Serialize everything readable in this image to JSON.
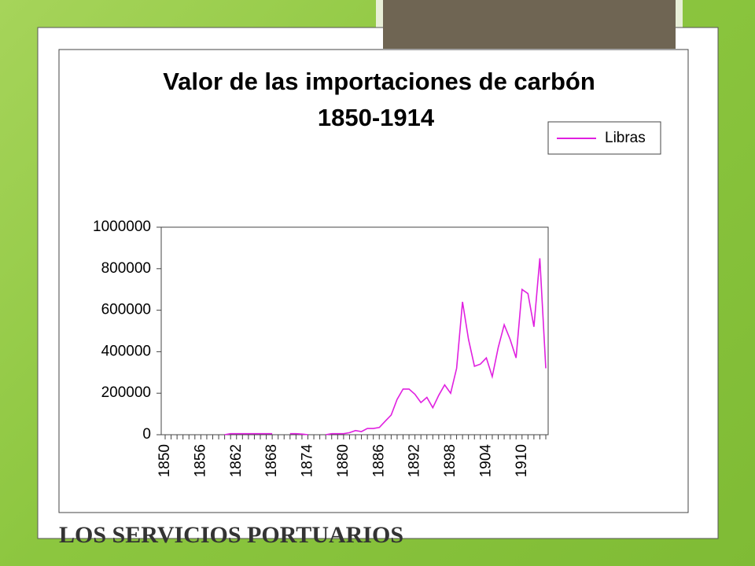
{
  "slide_title": "LOS SERVICIOS PORTUARIOS",
  "chart_data": {
    "type": "line",
    "title": "Valor de las importaciones de carbón",
    "subtitle": "1850-1914",
    "categories": [
      "1850",
      null,
      null,
      null,
      null,
      null,
      "1856",
      null,
      null,
      null,
      null,
      null,
      "1862",
      null,
      null,
      null,
      null,
      null,
      "1868",
      null,
      null,
      null,
      null,
      null,
      "1874",
      null,
      null,
      null,
      null,
      null,
      "1880",
      null,
      null,
      null,
      null,
      null,
      "1886",
      null,
      null,
      null,
      null,
      null,
      "1892",
      null,
      null,
      null,
      null,
      null,
      "1898",
      null,
      null,
      null,
      null,
      null,
      "1904",
      null,
      null,
      null,
      null,
      null,
      "1910",
      null,
      null,
      null,
      null
    ],
    "series": [
      {
        "name": "Libras",
        "color": "#e020e0",
        "values": [
          null,
          null,
          null,
          null,
          null,
          null,
          null,
          null,
          null,
          null,
          0,
          5000,
          5000,
          5000,
          5000,
          5000,
          5000,
          5000,
          5000,
          null,
          null,
          5000,
          5000,
          3000,
          0,
          null,
          null,
          0,
          5000,
          5000,
          5000,
          10000,
          20000,
          15000,
          30000,
          30000,
          35000,
          65000,
          95000,
          170000,
          220000,
          220000,
          195000,
          155000,
          180000,
          130000,
          190000,
          240000,
          200000,
          320000,
          640000,
          460000,
          330000,
          340000,
          370000,
          280000,
          420000,
          530000,
          460000,
          370000,
          700000,
          680000,
          520000,
          850000,
          320000
        ]
      }
    ],
    "ylim": [
      0,
      1000000
    ],
    "yticks": [
      0,
      200000,
      400000,
      600000,
      800000,
      1000000
    ],
    "legend": "top-right"
  }
}
